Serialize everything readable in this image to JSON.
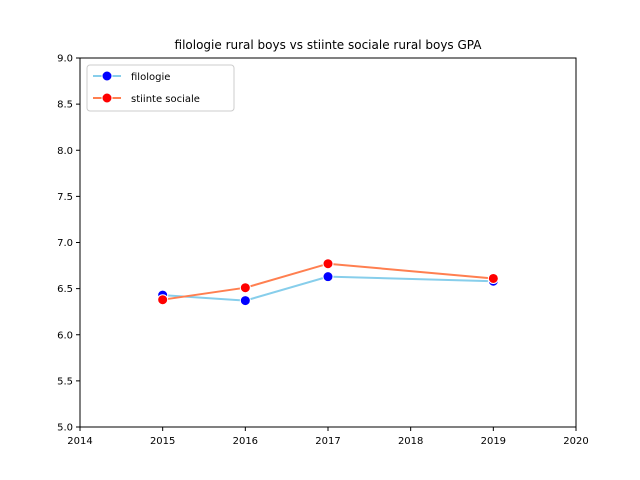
{
  "chart_data": {
    "type": "line",
    "title": "filologie rural boys vs stiinte sociale rural boys GPA",
    "xlabel": "",
    "ylabel": "",
    "xlim": [
      2014,
      2020
    ],
    "ylim": [
      5.0,
      9.0
    ],
    "x_ticks": [
      "2014",
      "2015",
      "2016",
      "2017",
      "2018",
      "2019",
      "2020"
    ],
    "y_ticks": [
      "5.0",
      "5.5",
      "6.0",
      "6.5",
      "7.0",
      "7.5",
      "8.0",
      "8.5",
      "9.0"
    ],
    "grid": false,
    "legend_position": "upper-left",
    "series": [
      {
        "name": "filologie",
        "line_color": "#87ceeb",
        "marker_color": "#0000ff",
        "x": [
          2015,
          2016,
          2017,
          2019
        ],
        "y": [
          6.43,
          6.37,
          6.63,
          6.58
        ]
      },
      {
        "name": "stiinte sociale",
        "line_color": "#ff7f50",
        "marker_color": "#ff0000",
        "x": [
          2015,
          2016,
          2017,
          2019
        ],
        "y": [
          6.38,
          6.51,
          6.77,
          6.61
        ]
      }
    ]
  }
}
